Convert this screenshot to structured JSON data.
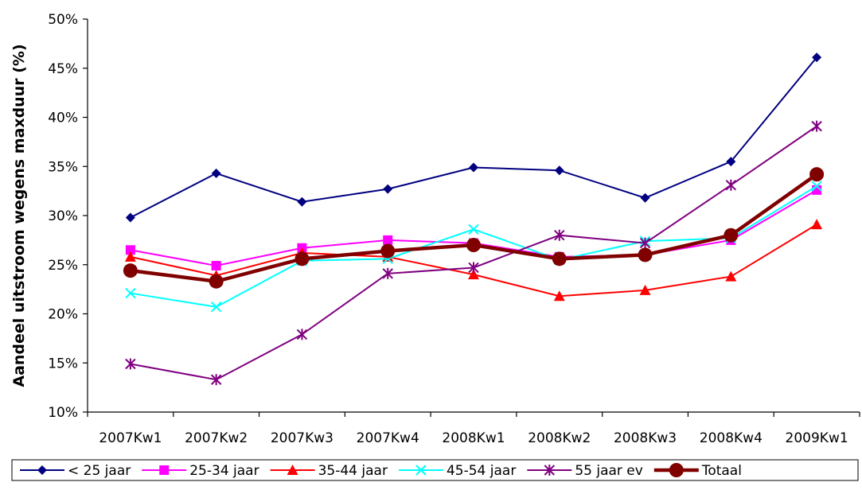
{
  "chart_data": {
    "type": "line",
    "title": "",
    "xlabel": "",
    "ylabel": "Aandeel uitstroom wegens maxduur (%)",
    "ylim": [
      10,
      50
    ],
    "yticks": [
      "10%",
      "15%",
      "20%",
      "25%",
      "30%",
      "35%",
      "40%",
      "45%",
      "50%"
    ],
    "categories": [
      "2007Kw1",
      "2007Kw2",
      "2007Kw3",
      "2007Kw4",
      "2008Kw1",
      "2008Kw2",
      "2008Kw3",
      "2008Kw4",
      "2009Kw1"
    ],
    "grid": false,
    "legend": "bottom",
    "series": [
      {
        "name": "< 25 jaar",
        "color": "#000080",
        "marker": "diamond",
        "values": [
          29.8,
          34.3,
          31.4,
          32.7,
          34.9,
          34.6,
          31.8,
          35.5,
          46.1
        ]
      },
      {
        "name": "25-34 jaar",
        "color": "#ff00ff",
        "marker": "square",
        "values": [
          26.5,
          24.9,
          26.7,
          27.5,
          27.2,
          25.8,
          26.0,
          27.5,
          32.6
        ]
      },
      {
        "name": "35-44 jaar",
        "color": "#ff0000",
        "marker": "triangle",
        "values": [
          25.8,
          23.9,
          26.2,
          25.8,
          24.0,
          21.8,
          22.4,
          23.8,
          29.1
        ]
      },
      {
        "name": "45-54 jaar",
        "color": "#00ffff",
        "marker": "x",
        "values": [
          22.1,
          20.7,
          25.4,
          25.6,
          28.6,
          25.5,
          27.4,
          27.7,
          33.0
        ]
      },
      {
        "name": "55 jaar ev",
        "color": "#800080",
        "marker": "asterisk",
        "values": [
          14.9,
          13.3,
          17.9,
          24.1,
          24.7,
          28.0,
          27.2,
          33.1,
          39.1
        ]
      },
      {
        "name": "Totaal",
        "color": "#800000",
        "marker": "circle",
        "values": [
          24.4,
          23.3,
          25.6,
          26.4,
          27.0,
          25.6,
          26.0,
          28.0,
          34.2
        ]
      }
    ]
  }
}
